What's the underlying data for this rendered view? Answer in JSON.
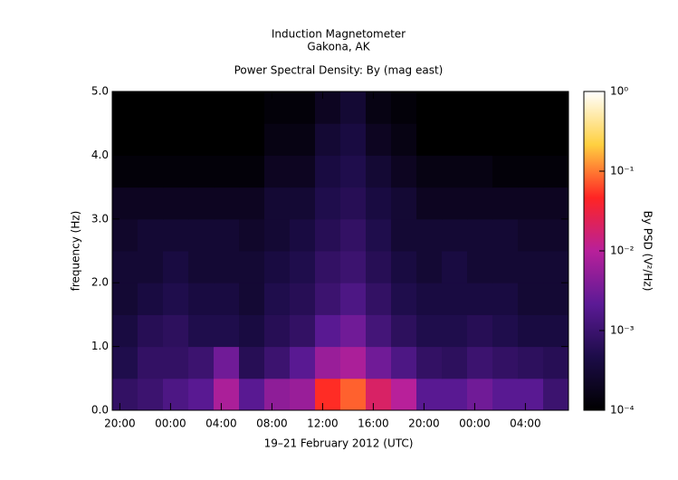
{
  "chart_data": {
    "type": "heatmap",
    "title": "Induction Magnetometer",
    "subtitle": "Gakona, AK",
    "plot_title": "Power Spectral Density: By (mag east)",
    "xlabel": "19–21 February 2012 (UTC)",
    "ylabel": "frequency (Hz)",
    "colorbar_label": "By PSD (V²/Hz)",
    "xlim": [
      19.4,
      55.4
    ],
    "xticks": [
      {
        "value": 20,
        "label": "20:00"
      },
      {
        "value": 24,
        "label": "00:00"
      },
      {
        "value": 28,
        "label": "04:00"
      },
      {
        "value": 32,
        "label": "08:00"
      },
      {
        "value": 36,
        "label": "12:00"
      },
      {
        "value": 40,
        "label": "16:00"
      },
      {
        "value": 44,
        "label": "20:00"
      },
      {
        "value": 48,
        "label": "00:00"
      },
      {
        "value": 52,
        "label": "04:00"
      }
    ],
    "ylim": [
      0,
      5
    ],
    "yticks": [
      {
        "value": 0,
        "label": "0.0"
      },
      {
        "value": 1,
        "label": "1.0"
      },
      {
        "value": 2,
        "label": "2.0"
      },
      {
        "value": 3,
        "label": "3.0"
      },
      {
        "value": 4,
        "label": "4.0"
      },
      {
        "value": 5,
        "label": "5.0"
      }
    ],
    "clim": [
      0.0001,
      1
    ],
    "cticks": [
      {
        "value": 0.0001,
        "label": "10⁻⁴"
      },
      {
        "value": 0.001,
        "label": "10⁻³"
      },
      {
        "value": 0.01,
        "label": "10⁻²"
      },
      {
        "value": 0.1,
        "label": "10⁻¹"
      },
      {
        "value": 1,
        "label": "10⁰"
      }
    ],
    "color_scale": "log",
    "colormap": [
      "#000000",
      "#1c0c48",
      "#5c1a96",
      "#b8209a",
      "#ff2424",
      "#ffd040",
      "#ffffff"
    ],
    "xbins": [
      19.4,
      21.4,
      23.4,
      25.4,
      27.4,
      29.4,
      31.4,
      33.4,
      35.4,
      37.4,
      39.4,
      41.4,
      43.4,
      45.4,
      47.4,
      49.4,
      51.4,
      53.4,
      55.4
    ],
    "ybins": [
      0,
      0.5,
      1,
      1.5,
      2,
      2.5,
      3,
      3.5,
      4,
      4.5,
      5
    ],
    "values": [
      [
        0.0008,
        0.001,
        0.0015,
        0.002,
        0.008,
        0.002,
        0.005,
        0.006,
        0.05,
        0.08,
        0.02,
        0.01,
        0.002,
        0.002,
        0.003,
        0.002,
        0.002,
        0.001
      ],
      [
        0.0005,
        0.0008,
        0.0008,
        0.001,
        0.003,
        0.0006,
        0.001,
        0.002,
        0.006,
        0.008,
        0.003,
        0.0015,
        0.0008,
        0.0007,
        0.001,
        0.0008,
        0.0007,
        0.0006
      ],
      [
        0.0004,
        0.0006,
        0.0007,
        0.0005,
        0.0005,
        0.0004,
        0.0006,
        0.0008,
        0.002,
        0.003,
        0.0012,
        0.0007,
        0.0005,
        0.0005,
        0.0006,
        0.0005,
        0.0004,
        0.0004
      ],
      [
        0.0003,
        0.0004,
        0.0005,
        0.0004,
        0.0004,
        0.0003,
        0.0005,
        0.0006,
        0.001,
        0.0015,
        0.0008,
        0.0005,
        0.0004,
        0.0004,
        0.0004,
        0.0004,
        0.0003,
        0.0003
      ],
      [
        0.0003,
        0.0003,
        0.0004,
        0.0003,
        0.0003,
        0.0003,
        0.0004,
        0.0005,
        0.0008,
        0.001,
        0.0006,
        0.0004,
        0.0003,
        0.0004,
        0.0003,
        0.0003,
        0.0003,
        0.0003
      ],
      [
        0.00025,
        0.0003,
        0.0003,
        0.0003,
        0.0003,
        0.00025,
        0.0003,
        0.0004,
        0.0006,
        0.0008,
        0.0005,
        0.0003,
        0.0003,
        0.0003,
        0.0003,
        0.0003,
        0.00025,
        0.00025
      ],
      [
        0.0002,
        0.0002,
        0.0002,
        0.0002,
        0.0002,
        0.0002,
        0.0003,
        0.0003,
        0.0005,
        0.0006,
        0.0004,
        0.0003,
        0.0002,
        0.0002,
        0.0002,
        0.0002,
        0.0002,
        0.0002
      ],
      [
        0.00012,
        0.00012,
        0.00012,
        0.00012,
        0.00012,
        0.00012,
        0.0002,
        0.0002,
        0.0004,
        0.0005,
        0.0003,
        0.0002,
        0.00015,
        0.00015,
        0.00015,
        0.00012,
        0.00012,
        0.00012
      ],
      [
        0.0001,
        0.0001,
        0.0001,
        0.0001,
        0.0001,
        0.0001,
        0.00015,
        0.00015,
        0.0003,
        0.0004,
        0.0002,
        0.00015,
        0.0001,
        0.0001,
        0.0001,
        0.0001,
        0.0001,
        0.0001
      ],
      [
        0.0001,
        0.0001,
        0.0001,
        0.0001,
        0.0001,
        0.0001,
        0.00012,
        0.00012,
        0.0002,
        0.0003,
        0.00015,
        0.00012,
        0.0001,
        0.0001,
        0.0001,
        0.0001,
        0.0001,
        0.0001
      ]
    ]
  }
}
